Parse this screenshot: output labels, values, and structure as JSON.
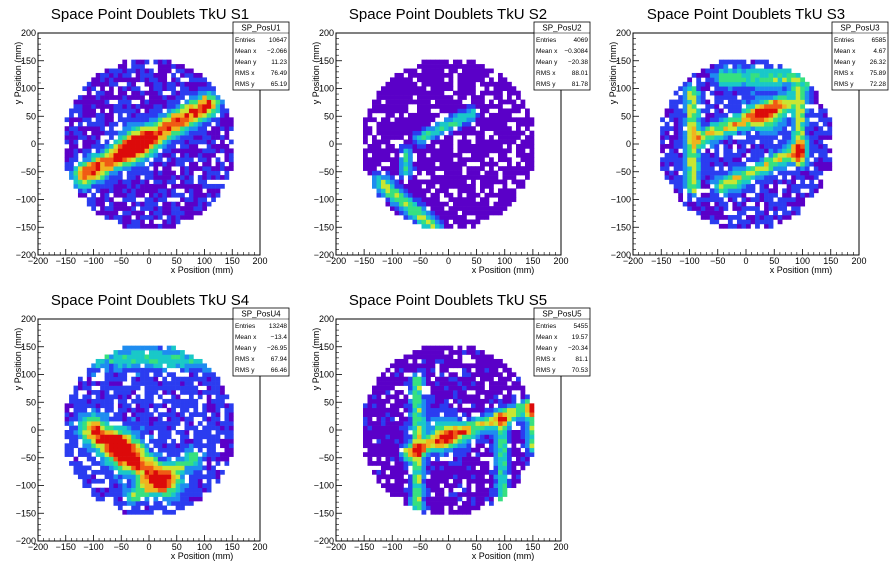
{
  "chart_data": [
    {
      "type": "heatmap",
      "title": "Space Point Doublets TkU S1",
      "xlabel": "x Position (mm)",
      "ylabel": "y Position (mm)",
      "xlim": [
        -200,
        200
      ],
      "ylim": [
        -200,
        200
      ],
      "xticks": [
        "−200",
        "−150",
        "−100",
        "−50",
        "0",
        "50",
        "100",
        "150",
        "200"
      ],
      "yticks": [
        "−200",
        "−150",
        "−100",
        "−50",
        "0",
        "50",
        "100",
        "150",
        "200"
      ],
      "stats": {
        "name": "SP_PosU1",
        "rows": [
          {
            "label": "Entries",
            "value": "10647"
          },
          {
            "label": "Mean x",
            "value": "−2.066"
          },
          {
            "label": "Mean y",
            "value": "11.23"
          },
          {
            "label": "RMS x",
            "value": "76.49"
          },
          {
            "label": "RMS y",
            "value": "65.19"
          }
        ]
      },
      "bands": [
        {
          "x1": -115,
          "y1": -55,
          "x2": 105,
          "y2": 70,
          "w": 14,
          "peak": 0.9,
          "hot": [
            -25,
            0
          ]
        }
      ],
      "background_level": 0.1
    },
    {
      "type": "heatmap",
      "title": "Space Point Doublets TkU S2",
      "xlabel": "x Position (mm)",
      "ylabel": "y Position (mm)",
      "xlim": [
        -200,
        200
      ],
      "ylim": [
        -200,
        200
      ],
      "xticks": [
        "−200",
        "−150",
        "−100",
        "−50",
        "0",
        "50",
        "100",
        "150",
        "200"
      ],
      "yticks": [
        "−200",
        "−150",
        "−100",
        "−50",
        "0",
        "50",
        "100",
        "150",
        "200"
      ],
      "stats": {
        "name": "SP_PosU2",
        "rows": [
          {
            "label": "Entries",
            "value": "4069"
          },
          {
            "label": "Mean x",
            "value": "−0.3084"
          },
          {
            "label": "Mean y",
            "value": "−20.38"
          },
          {
            "label": "RMS x",
            "value": "88.01"
          },
          {
            "label": "RMS y",
            "value": "81.78"
          }
        ]
      },
      "bands": [
        {
          "x1": -120,
          "y1": -70,
          "x2": -25,
          "y2": -150,
          "w": 10,
          "peak": 0.55
        },
        {
          "x1": -50,
          "y1": 10,
          "x2": 40,
          "y2": 55,
          "w": 8,
          "peak": 0.45
        },
        {
          "x1": -75,
          "y1": -15,
          "x2": -75,
          "y2": -50,
          "w": 8,
          "peak": 0.4
        }
      ],
      "background_level": 0.05
    },
    {
      "type": "heatmap",
      "title": "Space Point Doublets TkU S3",
      "xlabel": "x Position (mm)",
      "ylabel": "y Position (mm)",
      "xlim": [
        -200,
        200
      ],
      "ylim": [
        -200,
        200
      ],
      "xticks": [
        "−200",
        "−150",
        "−100",
        "−50",
        "0",
        "50",
        "100",
        "150",
        "200"
      ],
      "yticks": [
        "−200",
        "−150",
        "−100",
        "−50",
        "0",
        "50",
        "100",
        "150",
        "200"
      ],
      "stats": {
        "name": "SP_PosU3",
        "rows": [
          {
            "label": "Entries",
            "value": "6585"
          },
          {
            "label": "Mean x",
            "value": "4.67"
          },
          {
            "label": "Mean y",
            "value": "26.32"
          },
          {
            "label": "RMS x",
            "value": "75.89"
          },
          {
            "label": "RMS y",
            "value": "72.28"
          }
        ]
      },
      "bands": [
        {
          "x1": -95,
          "y1": 95,
          "x2": -95,
          "y2": -80,
          "w": 8,
          "peak": 0.55
        },
        {
          "x1": 95,
          "y1": 95,
          "x2": 95,
          "y2": -30,
          "w": 8,
          "peak": 0.55
        },
        {
          "x1": -80,
          "y1": 10,
          "x2": 70,
          "y2": 75,
          "w": 10,
          "peak": 0.6,
          "hot": [
            35,
            50
          ]
        },
        {
          "x1": -40,
          "y1": -75,
          "x2": 95,
          "y2": -10,
          "w": 10,
          "peak": 0.55
        },
        {
          "x1": -40,
          "y1": 120,
          "x2": 110,
          "y2": 120,
          "w": 12,
          "peak": 0.4
        }
      ],
      "background_level": 0.12
    },
    {
      "type": "heatmap",
      "title": "Space Point Doublets TkU S4",
      "xlabel": "x Position (mm)",
      "ylabel": "y Position (mm)",
      "xlim": [
        -200,
        200
      ],
      "ylim": [
        -200,
        200
      ],
      "xticks": [
        "−200",
        "−150",
        "−100",
        "−50",
        "0",
        "50",
        "100",
        "150",
        "200"
      ],
      "yticks": [
        "−200",
        "−150",
        "−100",
        "−50",
        "0",
        "50",
        "100",
        "150",
        "200"
      ],
      "stats": {
        "name": "SP_PosU4",
        "rows": [
          {
            "label": "Entries",
            "value": "13248"
          },
          {
            "label": "Mean x",
            "value": "−13.4"
          },
          {
            "label": "Mean y",
            "value": "−26.95"
          },
          {
            "label": "RMS x",
            "value": "67.94"
          },
          {
            "label": "RMS y",
            "value": "66.46"
          }
        ]
      },
      "bands": [
        {
          "x1": -100,
          "y1": 0,
          "x2": 30,
          "y2": -95,
          "w": 16,
          "peak": 0.85,
          "hot": [
            -45,
            -35
          ]
        },
        {
          "x1": -30,
          "y1": -120,
          "x2": 80,
          "y2": -50,
          "w": 10,
          "peak": 0.4
        },
        {
          "x1": -90,
          "y1": 130,
          "x2": 90,
          "y2": 130,
          "w": 14,
          "peak": 0.3
        }
      ],
      "background_level": 0.14
    },
    {
      "type": "heatmap",
      "title": "Space Point Doublets TkU S5",
      "xlabel": "x Position (mm)",
      "ylabel": "y Position (mm)",
      "xlim": [
        -200,
        200
      ],
      "ylim": [
        -200,
        200
      ],
      "xticks": [
        "−200",
        "−150",
        "−100",
        "−50",
        "0",
        "50",
        "100",
        "150",
        "200"
      ],
      "yticks": [
        "−200",
        "−150",
        "−100",
        "−50",
        "0",
        "50",
        "100",
        "150",
        "200"
      ],
      "stats": {
        "name": "SP_PosU5",
        "rows": [
          {
            "label": "Entries",
            "value": "5455"
          },
          {
            "label": "Mean x",
            "value": "19.57"
          },
          {
            "label": "Mean y",
            "value": "−20.34"
          },
          {
            "label": "RMS x",
            "value": "81.1"
          },
          {
            "label": "RMS y",
            "value": "70.53"
          }
        ]
      },
      "bands": [
        {
          "x1": -55,
          "y1": 90,
          "x2": -55,
          "y2": -140,
          "w": 8,
          "peak": 0.5
        },
        {
          "x1": -70,
          "y1": -40,
          "x2": 140,
          "y2": 40,
          "w": 10,
          "peak": 0.6,
          "hot": [
            -5,
            -5
          ]
        },
        {
          "x1": 95,
          "y1": 20,
          "x2": 95,
          "y2": -130,
          "w": 8,
          "peak": 0.45
        },
        {
          "x1": 150,
          "y1": 45,
          "x2": 150,
          "y2": -30,
          "w": 8,
          "peak": 0.5
        }
      ],
      "background_level": 0.08
    }
  ],
  "colors": {
    "palette": [
      "#ffffff",
      "#5a00c8",
      "#2b3cf0",
      "#1e8cf0",
      "#19c8c8",
      "#36e080",
      "#c8e632",
      "#f0b41e",
      "#f05a14",
      "#dc0a0a"
    ]
  }
}
